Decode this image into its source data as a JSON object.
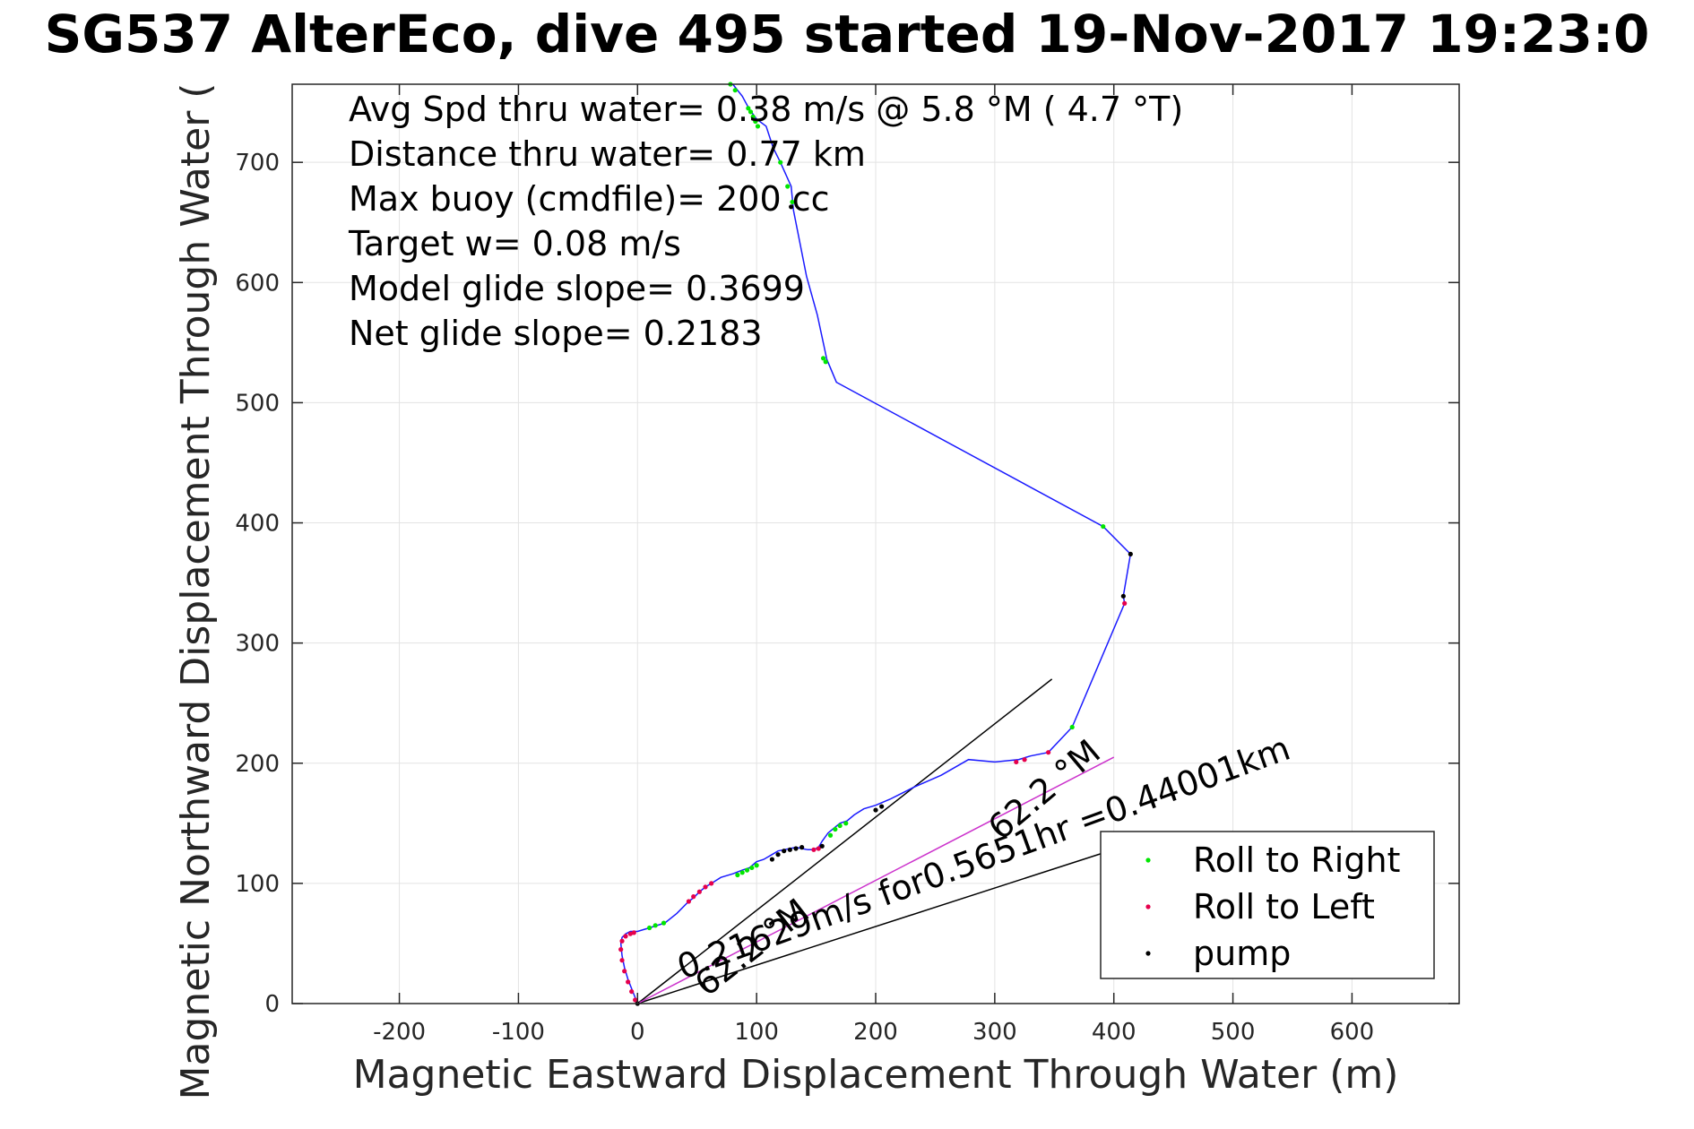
{
  "chart_data": {
    "type": "scatter",
    "title": "SG537 AlterEco, dive 495 started 19-Nov-2017 19:23:0",
    "xlabel": "Magnetic Eastward Displacement Through Water (m)",
    "ylabel": "Magnetic Northward Displacement Through Water (",
    "xlim": [
      -290,
      690
    ],
    "ylim": [
      0,
      765
    ],
    "xticks": [
      -200,
      -100,
      0,
      100,
      200,
      300,
      400,
      500,
      600
    ],
    "yticks": [
      0,
      100,
      200,
      300,
      400,
      500,
      600,
      700
    ],
    "grid": true,
    "info_lines": [
      "Avg Spd thru water=  0.38 m/s @   5.8 °M (  4.7 °T)",
      "Distance thru water=  0.77 km",
      "Max buoy (cmdfile)= 200 cc",
      "Target w= 0.08 m/s",
      "Model glide slope= 0.3699",
      "Net glide slope= 0.2183"
    ],
    "annotations": [
      {
        "text": "0.21629m/s for0.5651hr =0.44001km",
        "x": 38,
        "y": 20,
        "angle_deg": 20
      },
      {
        "text": "62.2 °M",
        "x": 305,
        "y": 135,
        "angle_deg": 40
      },
      {
        "text": "62.2 °M",
        "x": 58,
        "y": 5,
        "angle_deg": 38
      }
    ],
    "reference_lines": [
      {
        "x": [
          0,
          348
        ],
        "y": [
          0,
          270
        ],
        "color": "#000000"
      },
      {
        "x": [
          0,
          390
        ],
        "y": [
          0,
          125
        ],
        "color": "#000000"
      },
      {
        "x": [
          0,
          400
        ],
        "y": [
          0,
          205
        ],
        "color": "#cc33cc"
      }
    ],
    "series": [
      {
        "type": "line",
        "color": "#1a1aff",
        "x": [
          0,
          -4,
          -8,
          -11,
          -13,
          -14,
          -13,
          -10,
          -6,
          -3,
          0,
          10,
          23,
          33,
          43,
          47,
          52,
          57,
          62,
          70,
          80,
          88,
          94,
          100,
          106,
          113,
          118,
          123,
          128,
          133,
          138,
          143,
          148,
          152,
          155,
          160,
          165,
          170,
          176,
          182,
          190,
          200,
          212,
          232,
          255,
          278,
          300,
          320,
          330,
          345,
          365,
          409,
          408,
          414,
          391,
          167,
          159,
          151,
          142,
          131,
          130,
          129,
          120,
          114,
          108,
          100,
          97,
          94,
          88,
          80
        ],
        "y": [
          0,
          10,
          20,
          30,
          40,
          50,
          55,
          58,
          60,
          60,
          60,
          63,
          67,
          75,
          85,
          88,
          93,
          97,
          100,
          105,
          108,
          111,
          113,
          118,
          120,
          124,
          127,
          128,
          129,
          130,
          129,
          128,
          128,
          130,
          135,
          142,
          146,
          150,
          152,
          157,
          162,
          165,
          170,
          180,
          190,
          203,
          201,
          203,
          206,
          209,
          230,
          333,
          339,
          374,
          397,
          517,
          536,
          573,
          605,
          660,
          670,
          680,
          700,
          712,
          730,
          736,
          740,
          744,
          755,
          765
        ]
      },
      {
        "name": "Roll to Right",
        "type": "points",
        "color": "#00e600",
        "x": [
          10,
          15,
          22,
          84,
          88,
          92,
          96,
          100,
          162,
          166,
          170,
          175,
          365,
          391,
          130,
          126,
          120,
          158,
          156,
          93,
          95,
          97,
          99,
          101,
          78,
          82
        ],
        "y": [
          63,
          65,
          67,
          107,
          109,
          111,
          113,
          115,
          140,
          145,
          148,
          150,
          230,
          397,
          667,
          680,
          700,
          534,
          537,
          745,
          742,
          738,
          734,
          730,
          765,
          760
        ]
      },
      {
        "name": "Roll to Left",
        "type": "points",
        "color": "#e6004c",
        "x": [
          -2,
          -5,
          -8,
          -11,
          -13,
          -14,
          -13,
          -10,
          -6,
          -3,
          43,
          47,
          52,
          57,
          62,
          148,
          152,
          318,
          325,
          345,
          409
        ],
        "y": [
          3,
          10,
          18,
          27,
          36,
          45,
          52,
          56,
          58,
          59,
          85,
          89,
          93,
          97,
          100,
          128,
          129,
          201,
          203,
          209,
          333
        ],
        "path": {
          "x": [
            0,
            400
          ],
          "y": [
            0,
            205
          ]
        }
      },
      {
        "name": "pump",
        "type": "points",
        "color": "#000000",
        "x": [
          0,
          113,
          118,
          123,
          128,
          133,
          138,
          155,
          200,
          205,
          408,
          414,
          129
        ],
        "y": [
          0,
          120,
          124,
          127,
          128,
          129,
          130,
          131,
          161,
          164,
          339,
          374,
          663
        ]
      }
    ]
  }
}
